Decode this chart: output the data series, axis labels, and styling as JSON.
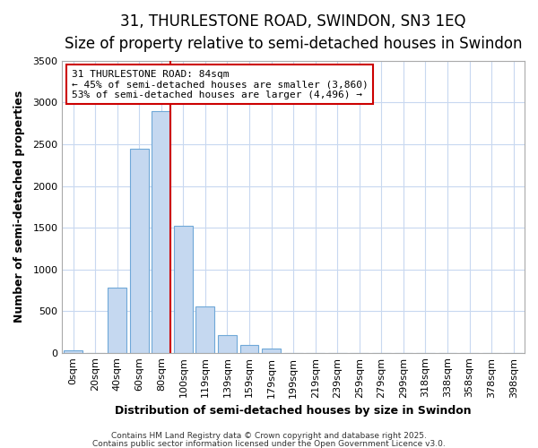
{
  "title": "31, THURLESTONE ROAD, SWINDON, SN3 1EQ",
  "subtitle": "Size of property relative to semi-detached houses in Swindon",
  "xlabel": "Distribution of semi-detached houses by size in Swindon",
  "ylabel": "Number of semi-detached properties",
  "categories": [
    "0sqm",
    "20sqm",
    "40sqm",
    "60sqm",
    "80sqm",
    "100sqm",
    "119sqm",
    "139sqm",
    "159sqm",
    "179sqm",
    "199sqm",
    "219sqm",
    "239sqm",
    "259sqm",
    "279sqm",
    "299sqm",
    "318sqm",
    "338sqm",
    "358sqm",
    "378sqm",
    "398sqm"
  ],
  "values": [
    30,
    0,
    780,
    2450,
    2900,
    1520,
    550,
    210,
    95,
    45,
    0,
    0,
    0,
    0,
    0,
    0,
    0,
    0,
    0,
    0,
    0
  ],
  "bar_color": "#c5d8f0",
  "bar_edgecolor": "#6fa8d8",
  "vline_color": "#cc0000",
  "vline_x": 4.42,
  "annotation_text": "31 THURLESTONE ROAD: 84sqm\n← 45% of semi-detached houses are smaller (3,860)\n53% of semi-detached houses are larger (4,496) →",
  "annotation_box_facecolor": "#ffffff",
  "annotation_box_edgecolor": "#cc0000",
  "ylim": [
    0,
    3500
  ],
  "yticks": [
    0,
    500,
    1000,
    1500,
    2000,
    2500,
    3000,
    3500
  ],
  "footer1": "Contains HM Land Registry data © Crown copyright and database right 2025.",
  "footer2": "Contains public sector information licensed under the Open Government Licence v3.0.",
  "title_fontsize": 12,
  "subtitle_fontsize": 10,
  "axis_label_fontsize": 9,
  "tick_fontsize": 8,
  "figure_background_color": "#ffffff",
  "plot_background_color": "#ffffff",
  "grid_color": "#c8d8f0"
}
